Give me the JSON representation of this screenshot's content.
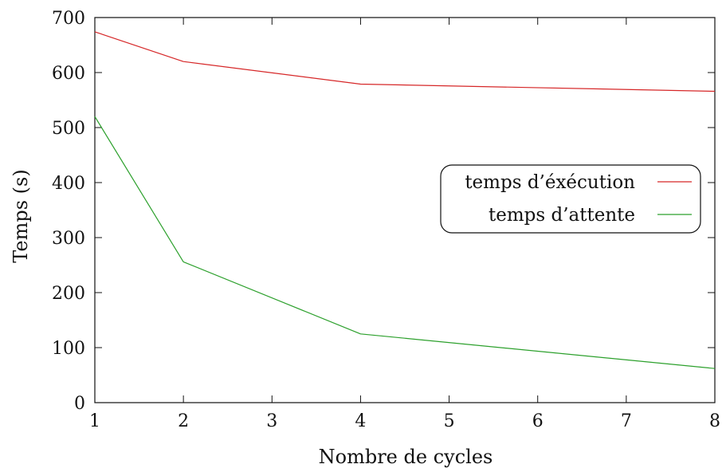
{
  "chart_data": {
    "type": "line",
    "title": "",
    "xlabel": "Nombre de cycles",
    "ylabel": "Temps (s)",
    "xlim": [
      1,
      8
    ],
    "ylim": [
      0,
      700
    ],
    "xticks": [
      1,
      2,
      3,
      4,
      5,
      6,
      7,
      8
    ],
    "yticks": [
      0,
      100,
      200,
      300,
      400,
      500,
      600,
      700
    ],
    "grid": false,
    "legend_position": "right",
    "series": [
      {
        "name": "temps d’éxécution",
        "color": "#d62728",
        "x": [
          1,
          2,
          4,
          8
        ],
        "y": [
          674,
          620,
          579,
          566
        ]
      },
      {
        "name": "temps d’attente",
        "color": "#2ca02c",
        "x": [
          1,
          2,
          4,
          8
        ],
        "y": [
          520,
          256,
          125,
          62
        ]
      }
    ]
  }
}
